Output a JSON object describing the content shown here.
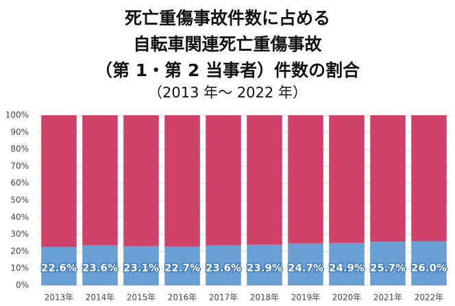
{
  "chart_data": {
    "type": "stacked_bar",
    "title": [
      "死亡重傷事故件数に占める",
      "自転車関連死亡重傷事故",
      "（第 1・第 2 当事者）件数の割合"
    ],
    "subtitle": "（2013 年〜 2022 年）",
    "categories": [
      "2013年",
      "2014年",
      "2015年",
      "2016年",
      "2017年",
      "2018年",
      "2019年",
      "2020年",
      "2021年",
      "2022年"
    ],
    "series": [
      {
        "color": "#6a9fd4",
        "values": [
          22.6,
          23.6,
          23.1,
          22.7,
          23.6,
          23.9,
          24.7,
          24.9,
          25.7,
          26.0
        ],
        "value_labels": [
          "22.6%",
          "23.6%",
          "23.1%",
          "22.7%",
          "23.6%",
          "23.9%",
          "24.7%",
          "24.9%",
          "25.7%",
          "26.0%"
        ]
      },
      {
        "color": "#d0426a",
        "values": [
          77.4,
          76.4,
          76.9,
          77.3,
          76.4,
          76.1,
          75.3,
          75.1,
          74.3,
          74.0
        ]
      }
    ],
    "ylim": [
      0,
      100
    ],
    "yticks": [
      {
        "value": 0,
        "label": "0%"
      },
      {
        "value": 10,
        "label": "10%"
      },
      {
        "value": 20,
        "label": "20%"
      },
      {
        "value": 30,
        "label": "30%"
      },
      {
        "value": 40,
        "label": "40%"
      },
      {
        "value": 50,
        "label": "50%"
      },
      {
        "value": 60,
        "label": "60%"
      },
      {
        "value": 70,
        "label": "70%"
      },
      {
        "value": 80,
        "label": "80%"
      },
      {
        "value": 90,
        "label": "90%"
      },
      {
        "value": 100,
        "label": "100%"
      }
    ],
    "grid": true
  }
}
